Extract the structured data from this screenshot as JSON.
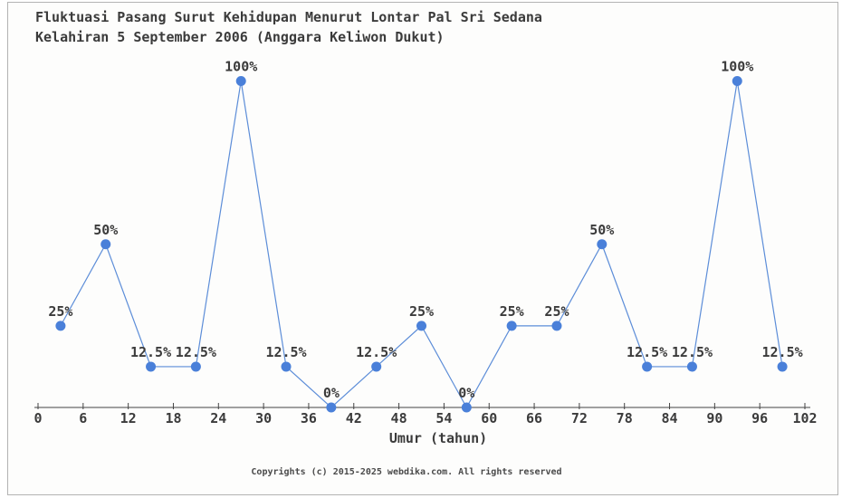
{
  "window": {
    "background_color": "#fdfdfc",
    "border_color": "#b3b3b3"
  },
  "header": {
    "title_line1": "Fluktuasi Pasang Surut Kehidupan Menurut Lontar Pal Sri Sedana",
    "title_line2": "Kelahiran 5 September 2006 (Anggara Keliwon Dukut)"
  },
  "footer": {
    "copyright": "Copyrights (c) 2015-2025 webdika.com. All rights reserved"
  },
  "chart_data": {
    "type": "line",
    "title": "Fluktuasi Pasang Surut Kehidupan Menurut Lontar Pal Sri Sedana Kelahiran 5 September 2006 (Anggara Keliwon Dukut)",
    "xlabel": "Umur (tahun)",
    "ylabel": "",
    "x": [
      3,
      9,
      15,
      21,
      27,
      33,
      39,
      45,
      51,
      57,
      63,
      69,
      75,
      81,
      87,
      93,
      99
    ],
    "values": [
      25,
      50,
      12.5,
      12.5,
      100,
      12.5,
      0,
      12.5,
      25,
      0,
      25,
      25,
      50,
      12.5,
      12.5,
      100,
      12.5
    ],
    "point_labels": [
      "25%",
      "50%",
      "12.5%",
      "12.5%",
      "100%",
      "12.5%",
      "0%",
      "12.5%",
      "25%",
      "0%",
      "25%",
      "25%",
      "50%",
      "12.5%",
      "12.5%",
      "100%",
      "12.5%"
    ],
    "x_ticks": [
      0,
      6,
      12,
      18,
      24,
      30,
      36,
      42,
      48,
      54,
      60,
      66,
      72,
      78,
      84,
      90,
      96,
      102
    ],
    "xlim": [
      0,
      102
    ],
    "ylim": [
      0,
      100
    ],
    "grid": false,
    "legend": "none",
    "line_color": "#5c8dd8",
    "marker_color": "#4a80d9",
    "axis_color": "#444444",
    "text_color": "#3b3b3b"
  }
}
